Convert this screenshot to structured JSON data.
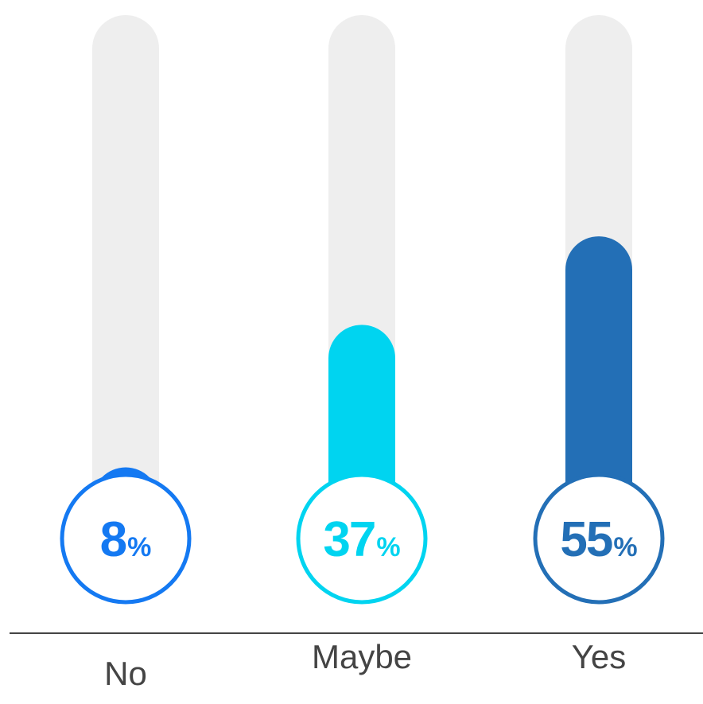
{
  "chart_data": {
    "type": "bar",
    "categories": [
      "No",
      "Maybe",
      "Yes"
    ],
    "values": [
      8,
      37,
      55
    ],
    "value_suffix": "%",
    "ylim": [
      0,
      100
    ],
    "title": "",
    "xlabel": "",
    "ylabel": "",
    "grid": false,
    "legend": "none",
    "colors": [
      "#1479f2",
      "#00d4f0",
      "#236fb6"
    ],
    "track_color": "#eeeeee",
    "axis_color": "#444444",
    "label_color": "#444444"
  }
}
